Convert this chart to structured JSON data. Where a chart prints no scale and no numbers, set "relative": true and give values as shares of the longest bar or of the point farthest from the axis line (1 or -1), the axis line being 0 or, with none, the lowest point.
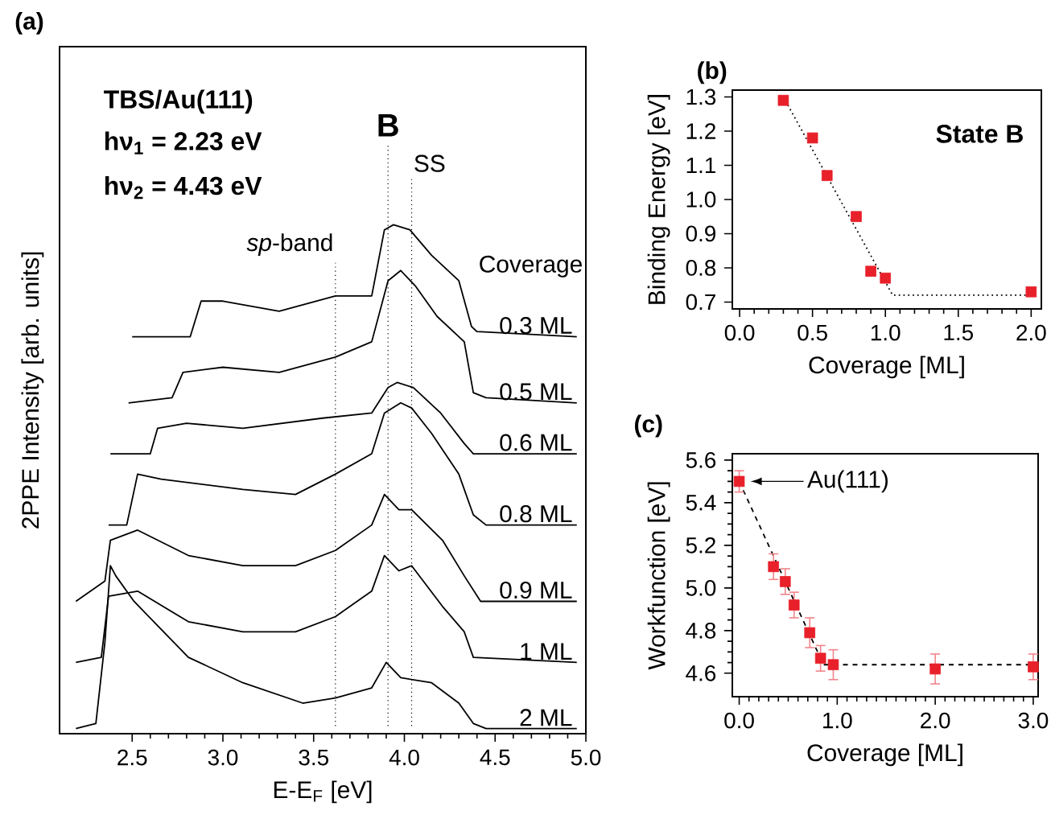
{
  "chart_data": [
    {
      "type": "line",
      "title": "(a)",
      "xlabel": "E-E$_{F}$ [eV]",
      "ylabel": "2PPE Intensity [arb. units]",
      "relative": true,
      "xlim": [
        2.1,
        5.0
      ],
      "xticks": [
        {
          "value": 2.5,
          "label": "2.5"
        },
        {
          "value": 3.0,
          "label": "3.0"
        },
        {
          "value": 3.5,
          "label": "3.5"
        },
        {
          "value": 4.0,
          "label": "4.0"
        },
        {
          "value": 4.5,
          "label": "4.5"
        },
        {
          "value": 5.0,
          "label": "5.0"
        }
      ],
      "annotations": [
        "TBS/Au(111)",
        "hν$_{1}$ = 2.23 eV",
        "hν$_{2}$ = 4.43 eV",
        "Coverage"
      ],
      "ref_lines": [
        {
          "axis": "x",
          "value": 3.62,
          "label": "*sp*-band",
          "line_style": "dotted"
        },
        {
          "axis": "x",
          "value": 3.91,
          "label": "B",
          "line_style": "dotted"
        },
        {
          "axis": "x",
          "value": 4.04,
          "label": "SS",
          "line_style": "dotted"
        }
      ],
      "series": [
        {
          "name": "0.3 ML",
          "color": "#000000",
          "x": [
            2.5,
            2.82,
            2.88,
            3.0,
            3.31,
            3.62,
            3.82,
            3.89,
            3.94,
            4.03,
            4.15,
            4.3,
            4.37,
            4.4,
            4.95
          ],
          "values": [
            0.78,
            0.78,
            0.85,
            0.85,
            0.83,
            0.86,
            0.86,
            0.99,
            1.0,
            0.99,
            0.94,
            0.89,
            0.8,
            0.79,
            0.78
          ]
        },
        {
          "name": "0.5 ML",
          "color": "#000000",
          "x": [
            2.48,
            2.72,
            2.78,
            3.0,
            3.31,
            3.62,
            3.82,
            3.91,
            3.98,
            4.06,
            4.18,
            4.33,
            4.38,
            4.45,
            4.95
          ],
          "values": [
            0.65,
            0.66,
            0.71,
            0.72,
            0.71,
            0.74,
            0.77,
            0.89,
            0.91,
            0.88,
            0.82,
            0.77,
            0.67,
            0.66,
            0.65
          ]
        },
        {
          "name": "0.6 ML",
          "color": "#000000",
          "x": [
            2.38,
            2.6,
            2.64,
            2.8,
            3.11,
            3.55,
            3.82,
            3.91,
            3.96,
            4.05,
            4.2,
            4.33,
            4.38,
            4.95
          ],
          "values": [
            0.55,
            0.55,
            0.6,
            0.61,
            0.6,
            0.62,
            0.63,
            0.68,
            0.69,
            0.68,
            0.63,
            0.57,
            0.55,
            0.55
          ]
        },
        {
          "name": "0.8 ML",
          "color": "#000000",
          "x": [
            2.37,
            2.47,
            2.53,
            2.66,
            3.11,
            3.4,
            3.62,
            3.82,
            3.89,
            3.98,
            4.04,
            4.15,
            4.3,
            4.38,
            4.45,
            4.95
          ],
          "values": [
            0.41,
            0.41,
            0.51,
            0.5,
            0.48,
            0.47,
            0.51,
            0.55,
            0.63,
            0.65,
            0.64,
            0.59,
            0.51,
            0.43,
            0.41,
            0.41
          ]
        },
        {
          "name": "0.9 ML",
          "color": "#000000",
          "x": [
            2.19,
            2.35,
            2.38,
            2.53,
            2.81,
            3.11,
            3.4,
            3.62,
            3.82,
            3.89,
            3.97,
            4.04,
            4.21,
            4.33,
            4.42,
            4.95
          ],
          "values": [
            0.26,
            0.3,
            0.38,
            0.4,
            0.35,
            0.33,
            0.33,
            0.36,
            0.41,
            0.47,
            0.44,
            0.44,
            0.38,
            0.31,
            0.26,
            0.26
          ]
        },
        {
          "name": "1 ML",
          "color": "#000000",
          "x": [
            2.19,
            2.33,
            2.37,
            2.53,
            2.81,
            3.11,
            3.4,
            3.62,
            3.82,
            3.89,
            3.97,
            4.04,
            4.21,
            4.33,
            4.38,
            4.95
          ],
          "values": [
            0.14,
            0.15,
            0.27,
            0.28,
            0.22,
            0.2,
            0.2,
            0.23,
            0.28,
            0.35,
            0.32,
            0.33,
            0.25,
            0.2,
            0.15,
            0.14
          ]
        },
        {
          "name": "2 ML",
          "color": "#000000",
          "x": [
            2.19,
            2.3,
            2.35,
            2.38,
            2.41,
            2.51,
            2.81,
            3.11,
            3.44,
            3.62,
            3.82,
            3.9,
            3.98,
            4.15,
            4.3,
            4.38,
            4.45,
            4.95
          ],
          "values": [
            0.01,
            0.02,
            0.18,
            0.33,
            0.31,
            0.26,
            0.15,
            0.1,
            0.06,
            0.07,
            0.09,
            0.14,
            0.11,
            0.1,
            0.06,
            0.02,
            0.01,
            0.01
          ]
        }
      ]
    },
    {
      "type": "scatter",
      "title": "(b)",
      "xlabel": "Coverage [ML]",
      "ylabel": "Binding Energy [eV]",
      "xlim": [
        -0.05,
        2.07
      ],
      "ylim": [
        0.68,
        1.32
      ],
      "xticks": [
        {
          "value": 0,
          "label": "0.0"
        },
        0.5,
        {
          "value": 1,
          "label": "1.0"
        },
        1.5,
        {
          "value": 2,
          "label": "2.0"
        }
      ],
      "yticks": [
        0.7,
        0.8,
        0.9,
        {
          "value": 1.0,
          "label": "1.0"
        },
        1.1,
        1.2,
        1.3
      ],
      "annotations": [
        "State B"
      ],
      "series": [
        {
          "type": "scatter",
          "marker": "square",
          "color": "#e8202a",
          "x": [
            0.3,
            0.5,
            0.6,
            0.8,
            0.9,
            1.0,
            2.0
          ],
          "values": [
            1.29,
            1.18,
            1.07,
            0.95,
            0.79,
            0.77,
            0.73
          ]
        },
        {
          "type": "line",
          "color": "#000000",
          "line_style": "dotted",
          "x": [
            0.3,
            1.05,
            2.0
          ],
          "values": [
            1.3,
            0.72,
            0.72
          ]
        }
      ]
    },
    {
      "type": "scatter",
      "title": "(c)",
      "xlabel": "Coverage [ML]",
      "ylabel": "Workfunction [eV]",
      "xlim": [
        -0.07,
        3.05
      ],
      "ylim": [
        4.49,
        5.63
      ],
      "xticks": [
        {
          "value": 0,
          "label": "0.0"
        },
        {
          "value": 1,
          "label": "1.0"
        },
        {
          "value": 2,
          "label": "2.0"
        },
        {
          "value": 3,
          "label": "3.0"
        }
      ],
      "yticks": [
        4.6,
        4.8,
        {
          "value": 5.0,
          "label": "5.0"
        },
        5.2,
        5.4,
        5.6
      ],
      "annotations": [
        {
          "text": "Au(111)",
          "x": 0,
          "y": 5.5
        }
      ],
      "series": [
        {
          "type": "scatter",
          "marker": "square",
          "color": "#e8202a",
          "x": [
            0,
            0.35,
            0.47,
            0.56,
            0.72,
            0.83,
            0.96,
            2.0,
            3.0
          ],
          "values": [
            5.5,
            5.1,
            5.03,
            4.92,
            4.79,
            4.67,
            4.64,
            4.62,
            4.63
          ],
          "errors": [
            0.05,
            0.06,
            0.06,
            0.06,
            0.07,
            0.06,
            0.07,
            0.07,
            0.06
          ]
        },
        {
          "type": "line",
          "color": "#000000",
          "line_style": "dashed",
          "x": [
            0,
            0.86,
            3.0
          ],
          "values": [
            5.5,
            4.64,
            4.64
          ]
        }
      ]
    }
  ]
}
